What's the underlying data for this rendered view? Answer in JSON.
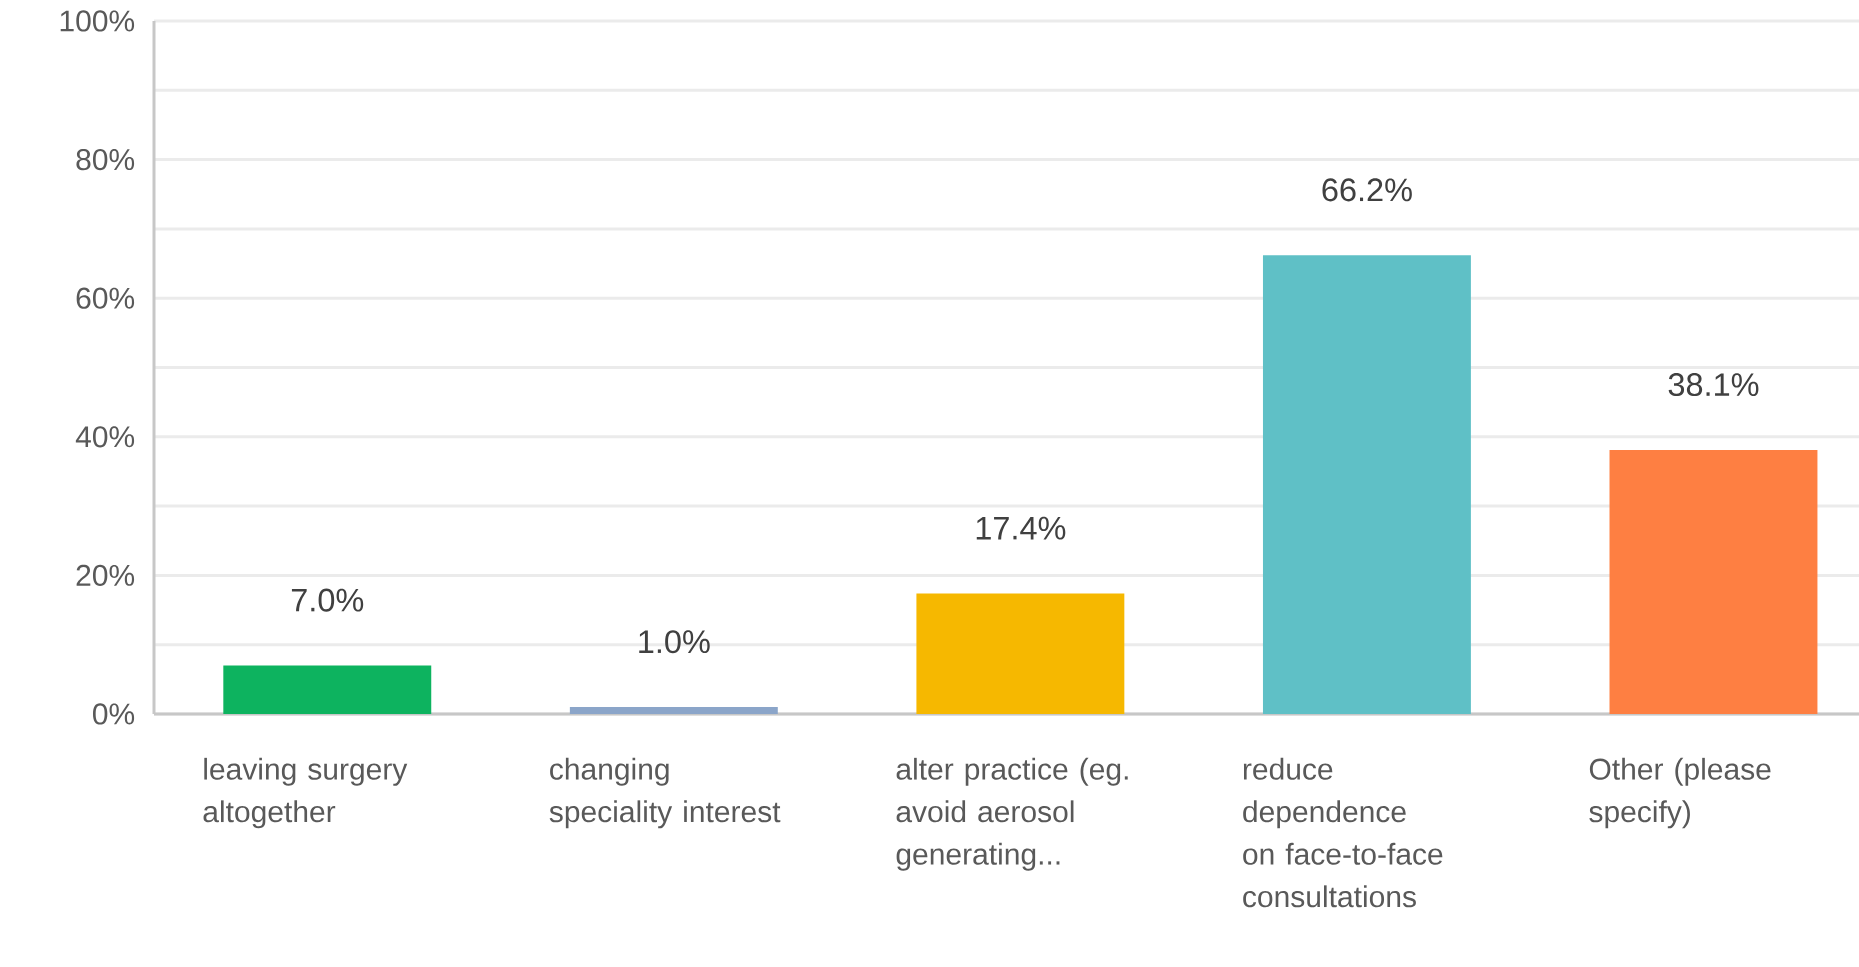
{
  "chart_data": {
    "type": "bar",
    "categories": [
      "leaving surgery altogether",
      "changing speciality interest",
      "alter practice (eg. avoid aerosol generating...",
      "reduce dependence on face-to-face consultations",
      "Other (please specify)"
    ],
    "values": [
      7.0,
      1.0,
      17.4,
      66.2,
      38.1
    ],
    "value_labels": [
      "7.0%",
      "1.0%",
      "17.4%",
      "66.2%",
      "38.1%"
    ],
    "colors": [
      "#0db35f",
      "#8ba5c9",
      "#f6b800",
      "#5fc0c6",
      "#fe7f42"
    ],
    "ylim": [
      0,
      100
    ],
    "yticks": [
      {
        "value": 0,
        "label": "0%"
      },
      {
        "value": 10,
        "label": null
      },
      {
        "value": 20,
        "label": "20%"
      },
      {
        "value": 30,
        "label": null
      },
      {
        "value": 40,
        "label": "40%"
      },
      {
        "value": 50,
        "label": null
      },
      {
        "value": 60,
        "label": "60%"
      },
      {
        "value": 70,
        "label": null
      },
      {
        "value": 80,
        "label": "80%"
      },
      {
        "value": 90,
        "label": null
      },
      {
        "value": 100,
        "label": "100%"
      }
    ],
    "grid": "y"
  }
}
